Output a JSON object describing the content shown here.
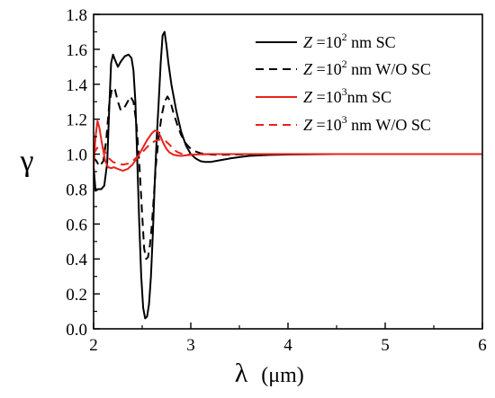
{
  "chart_data": {
    "type": "line",
    "xlabel": "λ (μm)",
    "ylabel": "γ",
    "xlim": [
      2,
      6
    ],
    "ylim": [
      0.0,
      1.8
    ],
    "xticks": [
      2,
      3,
      4,
      5,
      6
    ],
    "yticks": [
      0.0,
      0.2,
      0.4,
      0.6,
      0.8,
      1.0,
      1.2,
      1.4,
      1.6,
      1.8
    ],
    "grid": false,
    "legend_position": "top-right",
    "series": [
      {
        "name": "Z =10^2 nm SC",
        "color": "#000000",
        "dash": "solid",
        "x": [
          2.0,
          2.02,
          2.05,
          2.08,
          2.11,
          2.14,
          2.16,
          2.18,
          2.2,
          2.22,
          2.25,
          2.28,
          2.32,
          2.36,
          2.39,
          2.41,
          2.43,
          2.45,
          2.47,
          2.49,
          2.51,
          2.53,
          2.55,
          2.57,
          2.59,
          2.61,
          2.63,
          2.65,
          2.67,
          2.69,
          2.71,
          2.73,
          2.75,
          2.77,
          2.8,
          2.85,
          2.9,
          2.95,
          3.0,
          3.05,
          3.1,
          3.15,
          3.2,
          3.3,
          3.4,
          3.5,
          3.6,
          3.8,
          4.0,
          4.5,
          5.0,
          5.5,
          6.0
        ],
        "y": [
          0.93,
          0.79,
          0.8,
          0.8,
          0.82,
          0.95,
          1.25,
          1.52,
          1.57,
          1.54,
          1.5,
          1.53,
          1.56,
          1.57,
          1.55,
          1.48,
          1.3,
          0.95,
          0.6,
          0.3,
          0.12,
          0.06,
          0.07,
          0.14,
          0.3,
          0.55,
          0.85,
          1.1,
          1.3,
          1.52,
          1.68,
          1.7,
          1.62,
          1.52,
          1.4,
          1.25,
          1.13,
          1.05,
          1.0,
          0.975,
          0.96,
          0.955,
          0.955,
          0.965,
          0.975,
          0.983,
          0.99,
          0.995,
          0.998,
          1.0,
          1.0,
          1.0,
          1.0
        ]
      },
      {
        "name": "Z =10^2 nm W/O SC",
        "color": "#000000",
        "dash": "dashed",
        "x": [
          2.0,
          2.03,
          2.06,
          2.1,
          2.13,
          2.16,
          2.19,
          2.22,
          2.25,
          2.28,
          2.31,
          2.35,
          2.38,
          2.41,
          2.44,
          2.47,
          2.5,
          2.52,
          2.54,
          2.56,
          2.58,
          2.6,
          2.62,
          2.64,
          2.67,
          2.7,
          2.73,
          2.76,
          2.79,
          2.82,
          2.86,
          2.9,
          2.95,
          3.0,
          3.05,
          3.1,
          3.2,
          3.3,
          3.4,
          3.6,
          4.0,
          5.0,
          6.0
        ],
        "y": [
          0.98,
          0.96,
          0.93,
          0.96,
          1.08,
          1.28,
          1.38,
          1.37,
          1.3,
          1.25,
          1.26,
          1.3,
          1.33,
          1.3,
          1.18,
          0.95,
          0.65,
          0.46,
          0.4,
          0.41,
          0.48,
          0.6,
          0.76,
          0.93,
          1.1,
          1.22,
          1.3,
          1.33,
          1.3,
          1.24,
          1.17,
          1.11,
          1.06,
          1.03,
          1.015,
          1.005,
          0.998,
          0.996,
          0.997,
          0.999,
          1.0,
          1.0,
          1.0
        ]
      },
      {
        "name": "Z =10^3nm SC",
        "color": "#e8221c",
        "dash": "solid",
        "x": [
          2.0,
          2.02,
          2.04,
          2.06,
          2.08,
          2.1,
          2.12,
          2.15,
          2.18,
          2.21,
          2.25,
          2.3,
          2.35,
          2.4,
          2.45,
          2.5,
          2.55,
          2.6,
          2.63,
          2.66,
          2.69,
          2.72,
          2.75,
          2.78,
          2.82,
          2.86,
          2.9,
          2.95,
          3.0,
          3.1,
          3.2,
          3.4,
          4.0,
          5.0,
          6.0
        ],
        "y": [
          0.92,
          1.1,
          1.19,
          1.15,
          1.08,
          1.02,
          0.96,
          0.925,
          0.92,
          0.925,
          0.915,
          0.905,
          0.915,
          0.94,
          0.98,
          1.03,
          1.08,
          1.12,
          1.135,
          1.13,
          1.1,
          1.06,
          1.03,
          1.01,
          0.997,
          0.992,
          0.99,
          0.993,
          0.996,
          0.999,
          1.0,
          1.0,
          1.0,
          1.0,
          1.0
        ]
      },
      {
        "name": "Z =10^3 nm W/O SC",
        "color": "#e8221c",
        "dash": "dashed",
        "x": [
          2.0,
          2.03,
          2.06,
          2.09,
          2.12,
          2.15,
          2.2,
          2.25,
          2.3,
          2.35,
          2.4,
          2.45,
          2.5,
          2.55,
          2.6,
          2.65,
          2.7,
          2.74,
          2.78,
          2.82,
          2.86,
          2.9,
          2.95,
          3.0,
          3.1,
          3.2,
          3.5,
          4.0,
          5.0,
          6.0
        ],
        "y": [
          1.0,
          1.03,
          1.05,
          1.04,
          1.01,
          0.98,
          0.955,
          0.945,
          0.94,
          0.945,
          0.96,
          0.985,
          1.01,
          1.04,
          1.065,
          1.08,
          1.085,
          1.075,
          1.055,
          1.03,
          1.012,
          1.003,
          0.998,
          0.997,
          0.999,
          1.0,
          1.0,
          1.0,
          1.0,
          1.0
        ]
      }
    ]
  },
  "legend": [
    {
      "prefix": "Z",
      "mid": " =10",
      "sup": "2",
      "suffix": " nm SC"
    },
    {
      "prefix": "Z",
      "mid": " =10",
      "sup": "2",
      "suffix": " nm W/O SC"
    },
    {
      "prefix": "Z",
      "mid": " =10",
      "sup": "3",
      "suffix": "nm SC"
    },
    {
      "prefix": "Z",
      "mid": " =10",
      "sup": "3",
      "suffix": " nm W/O SC"
    }
  ],
  "axis_titles": {
    "x_main": "λ",
    "x_unit": "(μm)",
    "y_main": "γ"
  }
}
